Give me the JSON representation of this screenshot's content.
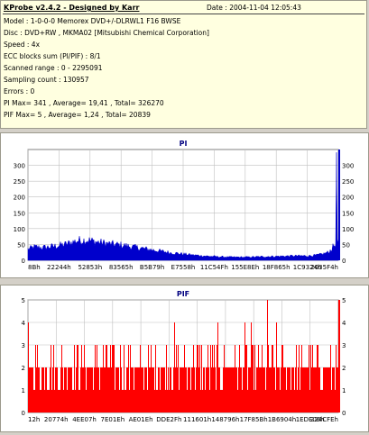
{
  "header": {
    "title": "KProbe v2.4.2 - Designed by Karr",
    "date": "Date : 2004-11-04 12:05:43"
  },
  "info_lines": [
    "Model : 1-0-0-0 Memorex DVD+/-DLRWL1 F16 BWSE",
    "Disc : DVD+RW , MKMA02 [Mitsubishi Chemical Corporation]",
    "Speed : 4x",
    "ECC blocks sum (PI/PIF) : 8/1",
    "Scanned range : 0 - 2295091",
    "Sampling count : 130957",
    "Errors : 0",
    "PI Max= 341 , Average= 19,41 , Total= 326270",
    "PIF Max= 5 , Average= 1,24 , Total= 20839"
  ],
  "colors": {
    "pi_series": "#0000cc",
    "pif_series": "#ff0000",
    "grid": "#c0c0c0",
    "right_axis_bar": "#0000cc"
  },
  "chart_data": [
    {
      "type": "area",
      "title": "PI",
      "xlabel": "",
      "ylabel": "",
      "ylim": [
        0,
        350
      ],
      "yticks": [
        0,
        50,
        100,
        150,
        200,
        250,
        300
      ],
      "xtick_labels": [
        "8Bh",
        "22244h",
        "52853h",
        "83565h",
        "B5B79h",
        "E7558h",
        "11C54Fh",
        "155E8Eh",
        "18F865h",
        "1C9324h",
        "2035F4h"
      ],
      "grid": true,
      "profile": [
        [
          0.0,
          35
        ],
        [
          0.02,
          42
        ],
        [
          0.05,
          40
        ],
        [
          0.09,
          45
        ],
        [
          0.12,
          50
        ],
        [
          0.16,
          62
        ],
        [
          0.19,
          64
        ],
        [
          0.22,
          58
        ],
        [
          0.26,
          52
        ],
        [
          0.3,
          48
        ],
        [
          0.34,
          42
        ],
        [
          0.38,
          36
        ],
        [
          0.42,
          30
        ],
        [
          0.46,
          24
        ],
        [
          0.5,
          20
        ],
        [
          0.54,
          16
        ],
        [
          0.58,
          13
        ],
        [
          0.62,
          11
        ],
        [
          0.66,
          10
        ],
        [
          0.7,
          10
        ],
        [
          0.74,
          11
        ],
        [
          0.78,
          12
        ],
        [
          0.82,
          13
        ],
        [
          0.86,
          14
        ],
        [
          0.9,
          14
        ],
        [
          0.93,
          16
        ],
        [
          0.95,
          20
        ],
        [
          0.97,
          26
        ],
        [
          0.985,
          45
        ],
        [
          1.0,
          60
        ]
      ],
      "max": 341,
      "max_position": 0.995
    },
    {
      "type": "bar",
      "title": "PIF",
      "xlabel": "",
      "ylabel": "",
      "ylim": [
        0,
        5
      ],
      "yticks": [
        0,
        1,
        2,
        3,
        4,
        5
      ],
      "xtick_labels": [
        "12h",
        "20774h",
        "4EE07h",
        "7E01Eh",
        "AE01Eh",
        "DDE2Fh",
        "111601h",
        "148796h",
        "17F85Bh",
        "1B6904h",
        "1EDE06h",
        "224CFEh"
      ],
      "grid": true,
      "level_distribution": {
        "1": 0.22,
        "2": 0.58,
        "3": 0.17,
        "4": 0.03
      },
      "max": 5,
      "max_position": 0.77
    }
  ]
}
